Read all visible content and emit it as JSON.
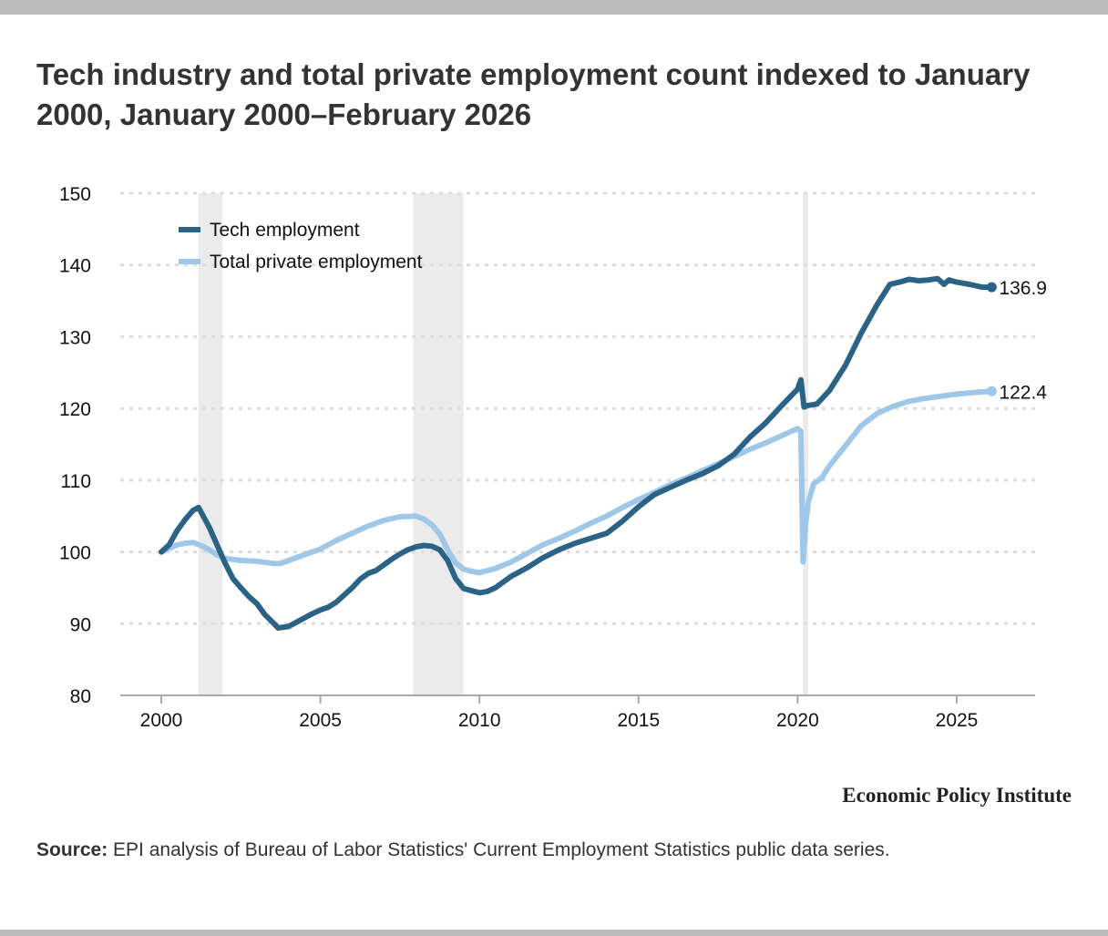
{
  "title": "Tech industry and total private employment count indexed to January 2000, January 2000–February 2026",
  "brand": "Economic Policy Institute",
  "source": {
    "label": "Source:",
    "text": " EPI analysis of Bureau of Labor Statistics' Current Employment Statistics public data series."
  },
  "chart_data": {
    "type": "line",
    "title": "Tech industry and total private employment count indexed to January 2000, January 2000–February 2026",
    "xlabel": "",
    "ylabel": "",
    "xlim": [
      1998.7,
      2027.3
    ],
    "ylim": [
      80,
      150
    ],
    "yticks": [
      80,
      90,
      100,
      110,
      120,
      130,
      140,
      150
    ],
    "xticks": [
      2000,
      2005,
      2010,
      2015,
      2020,
      2025
    ],
    "grid": true,
    "legend": "top-left",
    "recessions": [
      [
        2001.17,
        2001.92
      ],
      [
        2007.92,
        2009.5
      ],
      [
        2020.17,
        2020.33
      ]
    ],
    "colors": {
      "tech": "#2a6385",
      "total": "#9fc7e8",
      "recession": "#ebebeb"
    },
    "series": [
      {
        "name": "Tech employment",
        "key": "tech",
        "end_label": "136.9",
        "x": [
          2000.0,
          2000.25,
          2000.5,
          2000.75,
          2001.0,
          2001.17,
          2001.5,
          2001.75,
          2002.0,
          2002.25,
          2002.5,
          2002.75,
          2003.0,
          2003.25,
          2003.5,
          2003.67,
          2004.0,
          2004.25,
          2004.5,
          2004.75,
          2005.0,
          2005.25,
          2005.5,
          2005.75,
          2006.0,
          2006.25,
          2006.5,
          2006.75,
          2007.0,
          2007.25,
          2007.5,
          2007.75,
          2008.0,
          2008.25,
          2008.5,
          2008.75,
          2009.0,
          2009.25,
          2009.5,
          2009.75,
          2010.0,
          2010.25,
          2010.5,
          2010.75,
          2011.0,
          2011.5,
          2012.0,
          2012.5,
          2013.0,
          2013.5,
          2014.0,
          2014.5,
          2015.0,
          2015.5,
          2016.0,
          2016.5,
          2017.0,
          2017.5,
          2018.0,
          2018.5,
          2019.0,
          2019.5,
          2020.0,
          2020.1,
          2020.2,
          2020.3,
          2020.6,
          2021.0,
          2021.5,
          2022.0,
          2022.5,
          2022.9,
          2023.2,
          2023.5,
          2023.8,
          2024.1,
          2024.4,
          2024.6,
          2024.75,
          2025.0,
          2025.4,
          2025.8,
          2026.1
        ],
        "values": [
          100,
          101,
          103,
          104.5,
          105.8,
          106.2,
          103.5,
          101,
          98.5,
          96.3,
          95,
          93.8,
          92.8,
          91.3,
          90.2,
          89.4,
          89.6,
          90.2,
          90.8,
          91.4,
          91.9,
          92.3,
          93,
          94,
          95,
          96.2,
          97,
          97.4,
          98.2,
          99,
          99.7,
          100.3,
          100.7,
          100.9,
          100.8,
          100.3,
          98.8,
          96.3,
          94.9,
          94.6,
          94.3,
          94.5,
          95,
          95.8,
          96.6,
          97.8,
          99.2,
          100.3,
          101.2,
          101.9,
          102.6,
          104.3,
          106.3,
          108,
          109,
          110,
          110.9,
          112,
          113.6,
          116,
          118,
          120.4,
          122.7,
          124,
          120.2,
          120.4,
          120.6,
          122.5,
          126,
          130.5,
          134.5,
          137.3,
          137.6,
          138,
          137.8,
          137.9,
          138.1,
          137.3,
          137.9,
          137.6,
          137.3,
          136.9,
          136.9
        ]
      },
      {
        "name": "Total private employment",
        "key": "total",
        "end_label": "122.4",
        "x": [
          2000.0,
          2000.25,
          2000.5,
          2000.75,
          2001.0,
          2001.25,
          2001.5,
          2001.75,
          2002.0,
          2002.5,
          2003.0,
          2003.5,
          2003.75,
          2004.0,
          2004.5,
          2005.0,
          2005.5,
          2006.0,
          2006.5,
          2007.0,
          2007.5,
          2008.0,
          2008.25,
          2008.5,
          2008.75,
          2009.0,
          2009.25,
          2009.5,
          2009.75,
          2010.0,
          2010.5,
          2011.0,
          2011.5,
          2012.0,
          2012.5,
          2013.0,
          2013.5,
          2014.0,
          2014.5,
          2015.0,
          2015.5,
          2016.0,
          2016.5,
          2017.0,
          2017.5,
          2018.0,
          2018.5,
          2019.0,
          2019.5,
          2020.0,
          2020.1,
          2020.17,
          2020.25,
          2020.33,
          2020.5,
          2020.75,
          2021.0,
          2021.5,
          2022.0,
          2022.5,
          2023.0,
          2023.5,
          2024.0,
          2024.5,
          2025.0,
          2025.5,
          2026.1
        ],
        "values": [
          100,
          100.5,
          101,
          101.2,
          101.3,
          100.9,
          100.3,
          99.6,
          99.1,
          98.8,
          98.7,
          98.4,
          98.4,
          98.8,
          99.6,
          100.4,
          101.6,
          102.6,
          103.6,
          104.4,
          104.9,
          105,
          104.6,
          103.8,
          102.5,
          100.3,
          98.5,
          97.6,
          97.3,
          97.1,
          97.7,
          98.6,
          99.8,
          101,
          101.9,
          102.9,
          104,
          105,
          106.2,
          107.3,
          108.3,
          109.4,
          110.3,
          111.3,
          112.3,
          113.3,
          114.3,
          115.2,
          116.2,
          117.2,
          116.8,
          98.6,
          103.8,
          106.8,
          109.5,
          110.3,
          112,
          114.8,
          117.6,
          119.3,
          120.3,
          121,
          121.4,
          121.7,
          122,
          122.2,
          122.4
        ]
      }
    ]
  }
}
